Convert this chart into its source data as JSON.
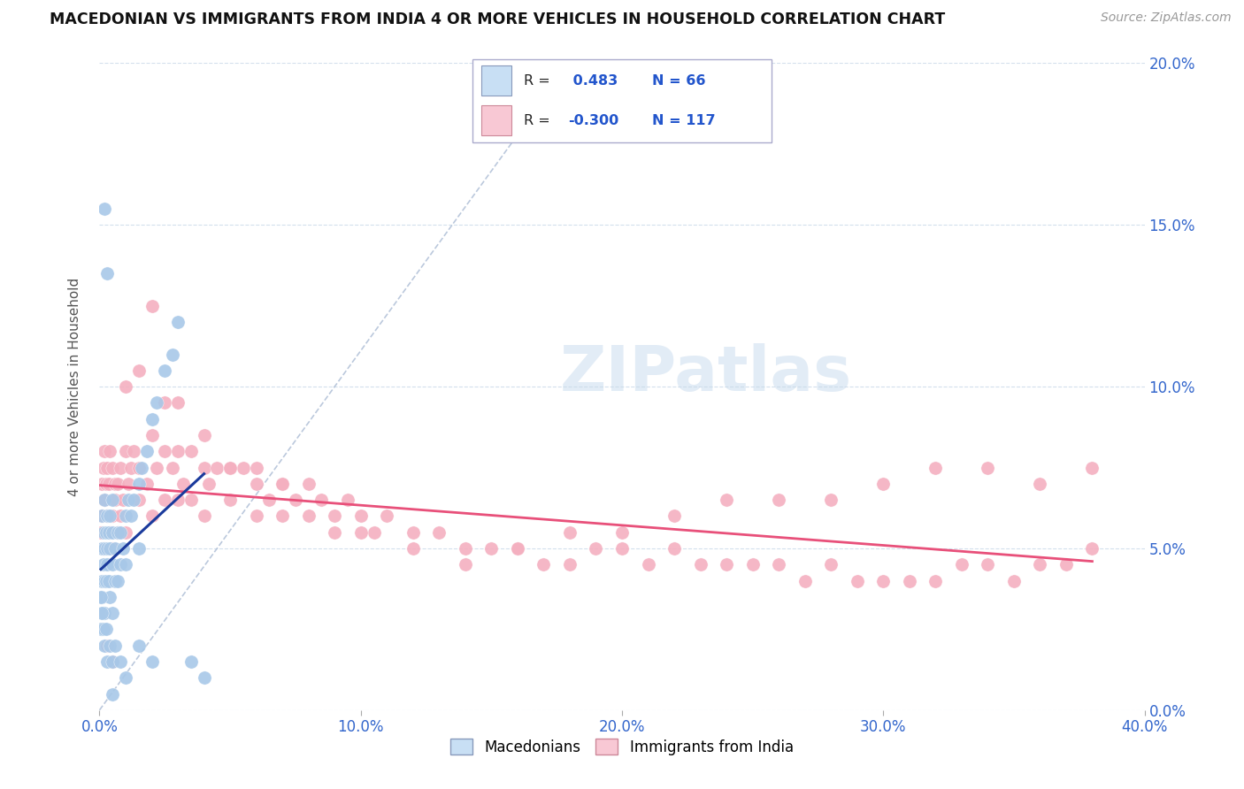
{
  "title": "MACEDONIAN VS IMMIGRANTS FROM INDIA 4 OR MORE VEHICLES IN HOUSEHOLD CORRELATION CHART",
  "source": "Source: ZipAtlas.com",
  "ylabel": "4 or more Vehicles in Household",
  "x_min": 0.0,
  "x_max": 40.0,
  "y_min": 0.0,
  "y_max": 20.0,
  "macedonian_R": 0.483,
  "macedonian_N": 66,
  "india_R": -0.3,
  "india_N": 117,
  "blue_color": "#a8c8e8",
  "blue_line_color": "#1a3a9c",
  "pink_color": "#f4b0c0",
  "pink_line_color": "#e8507a",
  "legend_blue_fill": "#c8dff4",
  "legend_pink_fill": "#f8c8d4",
  "watermark": "ZIPatlas",
  "blue_x": [
    0.1,
    0.1,
    0.1,
    0.1,
    0.1,
    0.15,
    0.15,
    0.15,
    0.2,
    0.2,
    0.2,
    0.2,
    0.25,
    0.25,
    0.3,
    0.3,
    0.3,
    0.35,
    0.35,
    0.4,
    0.4,
    0.4,
    0.5,
    0.5,
    0.5,
    0.5,
    0.6,
    0.6,
    0.7,
    0.7,
    0.8,
    0.8,
    0.9,
    1.0,
    1.0,
    1.1,
    1.2,
    1.3,
    1.5,
    1.5,
    1.6,
    1.8,
    2.0,
    2.2,
    2.5,
    2.8,
    3.0,
    0.05,
    0.05,
    0.1,
    0.15,
    0.2,
    0.25,
    0.3,
    0.4,
    0.5,
    0.6,
    0.8,
    1.0,
    1.5,
    2.0,
    3.5,
    4.0,
    0.2,
    0.3,
    0.5
  ],
  "blue_y": [
    4.0,
    5.0,
    3.5,
    6.0,
    2.5,
    4.5,
    5.5,
    3.0,
    5.0,
    4.0,
    6.5,
    3.0,
    5.5,
    4.0,
    6.0,
    5.0,
    4.5,
    5.5,
    4.0,
    5.0,
    6.0,
    3.5,
    5.5,
    4.5,
    6.5,
    3.0,
    5.0,
    4.0,
    5.5,
    4.0,
    5.5,
    4.5,
    5.0,
    6.0,
    4.5,
    6.5,
    6.0,
    6.5,
    7.0,
    5.0,
    7.5,
    8.0,
    9.0,
    9.5,
    10.5,
    11.0,
    12.0,
    3.5,
    2.5,
    3.0,
    2.5,
    2.0,
    2.5,
    1.5,
    2.0,
    1.5,
    2.0,
    1.5,
    1.0,
    2.0,
    1.5,
    1.5,
    1.0,
    15.5,
    13.5,
    0.5
  ],
  "pink_x": [
    0.05,
    0.1,
    0.1,
    0.15,
    0.15,
    0.2,
    0.2,
    0.25,
    0.3,
    0.3,
    0.35,
    0.4,
    0.4,
    0.5,
    0.5,
    0.5,
    0.6,
    0.6,
    0.7,
    0.7,
    0.8,
    0.8,
    0.9,
    1.0,
    1.0,
    1.1,
    1.2,
    1.3,
    1.5,
    1.5,
    1.8,
    2.0,
    2.0,
    2.2,
    2.5,
    2.5,
    2.8,
    3.0,
    3.0,
    3.2,
    3.5,
    3.5,
    4.0,
    4.0,
    4.2,
    4.5,
    5.0,
    5.0,
    5.5,
    6.0,
    6.0,
    6.5,
    7.0,
    7.0,
    7.5,
    8.0,
    8.5,
    9.0,
    9.5,
    10.0,
    10.5,
    11.0,
    12.0,
    13.0,
    14.0,
    15.0,
    16.0,
    17.0,
    18.0,
    19.0,
    20.0,
    21.0,
    22.0,
    23.0,
    24.0,
    25.0,
    26.0,
    27.0,
    28.0,
    29.0,
    30.0,
    31.0,
    32.0,
    33.0,
    34.0,
    35.0,
    36.0,
    37.0,
    38.0,
    1.0,
    1.5,
    2.0,
    2.5,
    3.0,
    4.0,
    5.0,
    6.0,
    7.0,
    8.0,
    9.0,
    10.0,
    12.0,
    14.0,
    16.0,
    18.0,
    20.0,
    22.0,
    24.0,
    26.0,
    28.0,
    30.0,
    32.0,
    34.0,
    36.0,
    38.0,
    0.3,
    0.5
  ],
  "pink_y": [
    5.5,
    7.0,
    6.0,
    7.5,
    5.0,
    8.0,
    6.5,
    7.0,
    7.5,
    6.0,
    7.0,
    8.0,
    5.5,
    7.5,
    6.0,
    5.0,
    7.0,
    6.5,
    7.0,
    5.5,
    7.5,
    6.0,
    6.5,
    8.0,
    5.5,
    7.0,
    7.5,
    8.0,
    7.5,
    6.5,
    7.0,
    8.5,
    6.0,
    7.5,
    8.0,
    6.5,
    7.5,
    8.0,
    6.5,
    7.0,
    8.0,
    6.5,
    7.5,
    6.0,
    7.0,
    7.5,
    7.5,
    6.5,
    7.5,
    7.0,
    6.0,
    6.5,
    7.0,
    6.0,
    6.5,
    7.0,
    6.5,
    6.0,
    6.5,
    6.0,
    5.5,
    6.0,
    5.5,
    5.5,
    5.0,
    5.0,
    5.0,
    4.5,
    4.5,
    5.0,
    5.0,
    4.5,
    5.0,
    4.5,
    4.5,
    4.5,
    4.5,
    4.0,
    4.5,
    4.0,
    4.0,
    4.0,
    4.0,
    4.5,
    4.5,
    4.0,
    4.5,
    4.5,
    5.0,
    10.0,
    10.5,
    12.5,
    9.5,
    9.5,
    8.5,
    7.5,
    7.5,
    7.0,
    6.0,
    5.5,
    5.5,
    5.0,
    4.5,
    5.0,
    5.5,
    5.5,
    6.0,
    6.5,
    6.5,
    6.5,
    7.0,
    7.5,
    7.5,
    7.0,
    7.5,
    2.0,
    1.5
  ]
}
